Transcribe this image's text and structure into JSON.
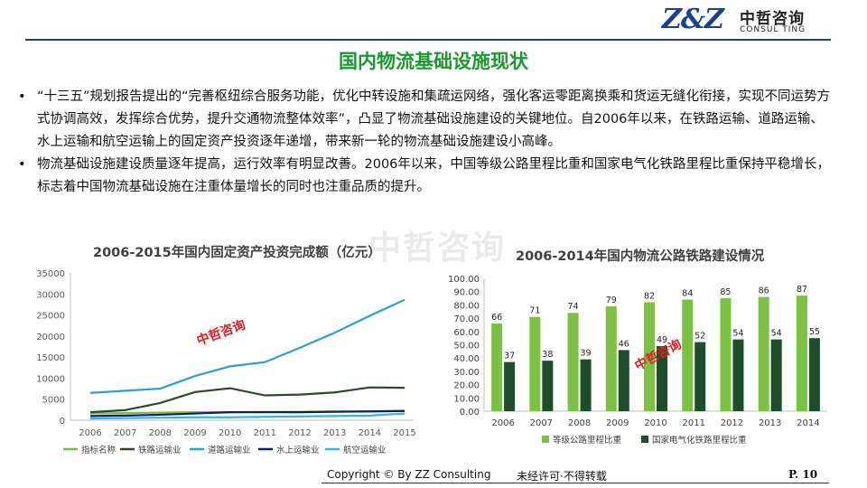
{
  "logo": {
    "mark": "Z&Z",
    "cn": "中哲咨询",
    "en": "CONSUL TING"
  },
  "title": "国内物流基础设施现状",
  "bullets": [
    "“十三五”规划报告提出的“完善枢纽综合服务功能，优化中转设施和集疏运网络，强化客运零距离换乘和货运无缝化衔接，实现不同运势方式协调高效，发挥综合优势，提升交通物流整体效率”，凸显了物流基础设施建设的关键地位。自2006年以来，在铁路运输、道路运输、水上运输和航空运输上的固定资产投资逐年递增，带来新一轮的物流基础设施建设小高峰。",
    "物流基础设施建设质量逐年提高，运行效率有明显改善。2006年以来，中国等级公路里程比重和国家电气化铁路里程比重保持平稳增长，标志着中国物流基础设施在注重体量增长的同时也注重品质的提升。"
  ],
  "bullet_symbol": "•",
  "watermark": "中哲咨询",
  "footer": {
    "copyright": "Copyright © By  ZZ Consulting",
    "note": "未经许可·不得转载",
    "page": "P. 10"
  },
  "chart_data": [
    {
      "type": "line",
      "title": "2006-2015年国内固定资产投资完成额（亿元）",
      "x": [
        "2006",
        "2007",
        "2008",
        "2009",
        "2010",
        "2011",
        "2012",
        "2013",
        "2014",
        "2015"
      ],
      "ylim": [
        0,
        35000
      ],
      "yticks": [
        "0",
        "5000",
        "10000",
        "15000",
        "20000",
        "25000",
        "30000",
        "35000"
      ],
      "grid": false,
      "legend": "bottom",
      "series": [
        {
          "name": "指标名称",
          "color": "#7dbb3c",
          "values": [
            1600,
            1700,
            1800,
            1900,
            1900,
            2000,
            2000,
            2100,
            2100,
            2200
          ]
        },
        {
          "name": "铁路运输业",
          "color": "#2b4a2b",
          "values": [
            1900,
            2400,
            4100,
            6700,
            7600,
            5900,
            6100,
            6600,
            7800,
            7700
          ]
        },
        {
          "name": "道路运输业",
          "color": "#2a9fd6",
          "values": [
            6500,
            7000,
            7500,
            10500,
            12800,
            13800,
            17200,
            20800,
            24800,
            28600
          ]
        },
        {
          "name": "水上运输业",
          "color": "#0c1f6b",
          "values": [
            1000,
            1100,
            1300,
            1600,
            1900,
            1900,
            1900,
            2000,
            2100,
            2200
          ]
        },
        {
          "name": "航空运输业",
          "color": "#33b5e5",
          "values": [
            400,
            500,
            600,
            700,
            700,
            800,
            900,
            1000,
            1100,
            1600
          ]
        }
      ]
    },
    {
      "type": "bar",
      "title": "2006-2014年国内物流公路铁路建设情况",
      "categories": [
        "2006",
        "2007",
        "2008",
        "2009",
        "2010",
        "2011",
        "2012",
        "2013",
        "2014"
      ],
      "ylim": [
        0,
        100
      ],
      "yticks": [
        "0.00",
        "10.00",
        "20.00",
        "30.00",
        "40.00",
        "50.00",
        "60.00",
        "70.00",
        "80.00",
        "90.00",
        "100.00"
      ],
      "legend": "bottom",
      "series": [
        {
          "name": "等级公路里程比重",
          "color": "#7cc242",
          "values": [
            66,
            71,
            74,
            79,
            82,
            84,
            85,
            86,
            87
          ]
        },
        {
          "name": "国家电气化铁路里程比重",
          "color": "#1e4d2b",
          "values": [
            37,
            38,
            39,
            46,
            49,
            52,
            54,
            54,
            55
          ]
        }
      ]
    }
  ]
}
